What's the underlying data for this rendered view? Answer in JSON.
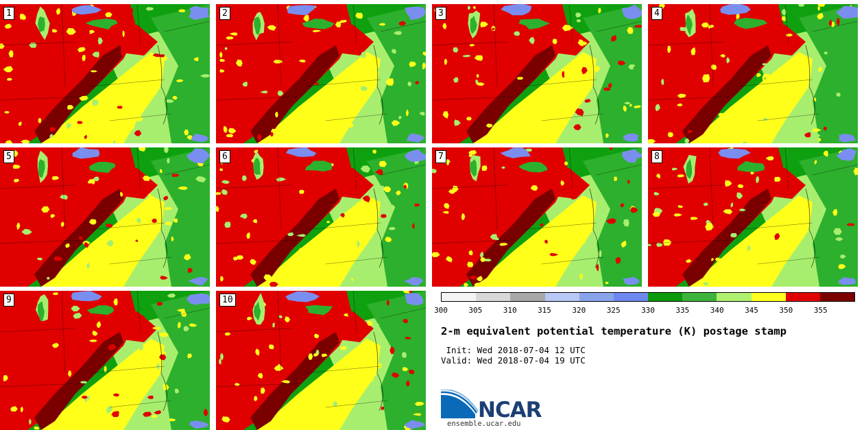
{
  "panels": [
    {
      "label": "1"
    },
    {
      "label": "2"
    },
    {
      "label": "3"
    },
    {
      "label": "4"
    },
    {
      "label": "5"
    },
    {
      "label": "6"
    },
    {
      "label": "7"
    },
    {
      "label": "8"
    },
    {
      "label": "9"
    },
    {
      "label": "10"
    }
  ],
  "colorbar": {
    "ticks": [
      "300",
      "305",
      "310",
      "315",
      "320",
      "325",
      "330",
      "335",
      "340",
      "345",
      "350",
      "355"
    ],
    "colors": [
      "#f4f4f4",
      "#d8d8d8",
      "#a8a8a8",
      "#b8c8f4",
      "#8aa4ec",
      "#6f88ee",
      "#0a9a0a",
      "#3cb43c",
      "#b0f070",
      "#ffff20",
      "#e00000",
      "#7a0000"
    ],
    "range": [
      300,
      360
    ]
  },
  "title": "2-m equivalent potential temperature (K) postage stamp",
  "init": " Init: Wed 2018-07-04 12 UTC",
  "valid": "Valid: Wed 2018-07-04 19 UTC",
  "logo_text": "NCAR",
  "site": "ensemble.ucar.edu"
}
